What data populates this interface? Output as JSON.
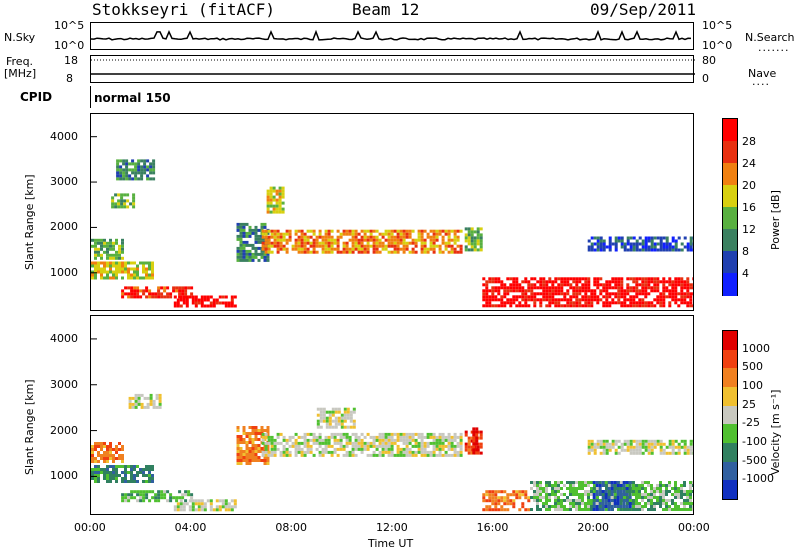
{
  "header": {
    "radar": "Stokkseyri (fitACF)",
    "beam": "Beam 12",
    "date": "09/Sep/2011"
  },
  "strip": {
    "nsky_label": "N.Sky",
    "nsky_axis": [
      "10^5",
      "10^0"
    ],
    "nsearch_label": "N.Search",
    "nsearch_axis": [
      "10^5",
      "10^0"
    ],
    "freq_label": "Freq.",
    "freq_unit": "[MHz]",
    "freq_axis": [
      "18",
      "8"
    ],
    "nave_label": "Nave",
    "nave_axis": [
      "80",
      "0"
    ],
    "cpid_label": "CPID",
    "cpid_value": "normal 150"
  },
  "chart_data": [
    {
      "type": "heatmap",
      "name": "power",
      "ylabel": "Slant Range [km]",
      "xlabel": "",
      "yticks": [
        1000,
        2000,
        3000,
        4000
      ],
      "ylim": [
        180,
        4500
      ],
      "xlim": [
        0,
        24
      ],
      "colorbar": {
        "label": "Power [dB]",
        "ticks": [
          "4",
          "8",
          "12",
          "16",
          "20",
          "24",
          "28"
        ],
        "colors": [
          "#1020ff",
          "#2040b0",
          "#3a8060",
          "#58b040",
          "#d8d010",
          "#f08010",
          "#e83010",
          "#ff0000"
        ]
      },
      "bands": [
        {
          "t0": 0.0,
          "t1": 2.5,
          "r0": 900,
          "r1": 1250,
          "level": 4
        },
        {
          "t0": 0.0,
          "t1": 1.2,
          "r0": 1300,
          "r1": 1750,
          "level": 3
        },
        {
          "t0": 1.2,
          "t1": 4.0,
          "r0": 450,
          "r1": 700,
          "level": 6
        },
        {
          "t0": 3.3,
          "t1": 5.8,
          "r0": 250,
          "r1": 500,
          "level": 7
        },
        {
          "t0": 0.8,
          "t1": 1.7,
          "r0": 2450,
          "r1": 2750,
          "level": 3
        },
        {
          "t0": 5.8,
          "t1": 7.0,
          "r0": 1300,
          "r1": 2100,
          "level": 2
        },
        {
          "t0": 6.8,
          "t1": 14.8,
          "r0": 1450,
          "r1": 1950,
          "level": 5
        },
        {
          "t0": 7.0,
          "t1": 7.6,
          "r0": 2350,
          "r1": 2900,
          "level": 4
        },
        {
          "t0": 14.9,
          "t1": 15.5,
          "r0": 1500,
          "r1": 2000,
          "level": 3
        },
        {
          "t0": 15.6,
          "t1": 24.0,
          "r0": 250,
          "r1": 900,
          "level": 7
        },
        {
          "t0": 19.8,
          "t1": 24.0,
          "r0": 1500,
          "r1": 1800,
          "level": 1
        },
        {
          "t0": 1.0,
          "t1": 2.5,
          "r0": 3100,
          "r1": 3500,
          "level": 2
        }
      ]
    },
    {
      "type": "heatmap",
      "name": "velocity",
      "ylabel": "Slant Range [km]",
      "xlabel": "Time UT",
      "yticks": [
        1000,
        2000,
        3000,
        4000
      ],
      "ylim": [
        180,
        4500
      ],
      "xlim": [
        0,
        24
      ],
      "xticks": [
        "00:00",
        "04:00",
        "08:00",
        "12:00",
        "16:00",
        "20:00",
        "00:00"
      ],
      "colorbar": {
        "label": "Velocity [m s⁻¹]",
        "ticks": [
          "1000",
          "500",
          "100",
          "25",
          "-25",
          "-100",
          "-500",
          "-1000"
        ],
        "colors": [
          "#1030c0",
          "#3060a0",
          "#308060",
          "#50c030",
          "#c8c8c0",
          "#f0c030",
          "#f08020",
          "#f04010",
          "#e00000"
        ]
      },
      "bands": [
        {
          "t0": 0.0,
          "t1": 2.5,
          "r0": 900,
          "r1": 1250,
          "level": 2
        },
        {
          "t0": 0.0,
          "t1": 1.2,
          "r0": 1300,
          "r1": 1750,
          "level": 6
        },
        {
          "t0": 1.2,
          "t1": 4.0,
          "r0": 450,
          "r1": 700,
          "level": 3
        },
        {
          "t0": 3.3,
          "t1": 5.8,
          "r0": 250,
          "r1": 500,
          "level": 4
        },
        {
          "t0": 1.5,
          "t1": 2.8,
          "r0": 2500,
          "r1": 2800,
          "level": 4
        },
        {
          "t0": 5.8,
          "t1": 7.0,
          "r0": 1300,
          "r1": 2100,
          "level": 6
        },
        {
          "t0": 6.8,
          "t1": 14.8,
          "r0": 1450,
          "r1": 1950,
          "level": 4
        },
        {
          "t0": 9.0,
          "t1": 10.5,
          "r0": 2100,
          "r1": 2500,
          "level": 4
        },
        {
          "t0": 14.9,
          "t1": 15.5,
          "r0": 1500,
          "r1": 2000,
          "level": 7
        },
        {
          "t0": 15.6,
          "t1": 17.5,
          "r0": 250,
          "r1": 700,
          "level": 6
        },
        {
          "t0": 17.5,
          "t1": 24.0,
          "r0": 250,
          "r1": 900,
          "level": 3
        },
        {
          "t0": 20.0,
          "t1": 21.5,
          "r0": 300,
          "r1": 900,
          "level": 1
        },
        {
          "t0": 19.8,
          "t1": 24.0,
          "r0": 1500,
          "r1": 1800,
          "level": 4
        },
        {
          "t0": 15.2,
          "t1": 15.4,
          "r0": 1500,
          "r1": 2200,
          "level": 8
        }
      ]
    }
  ]
}
